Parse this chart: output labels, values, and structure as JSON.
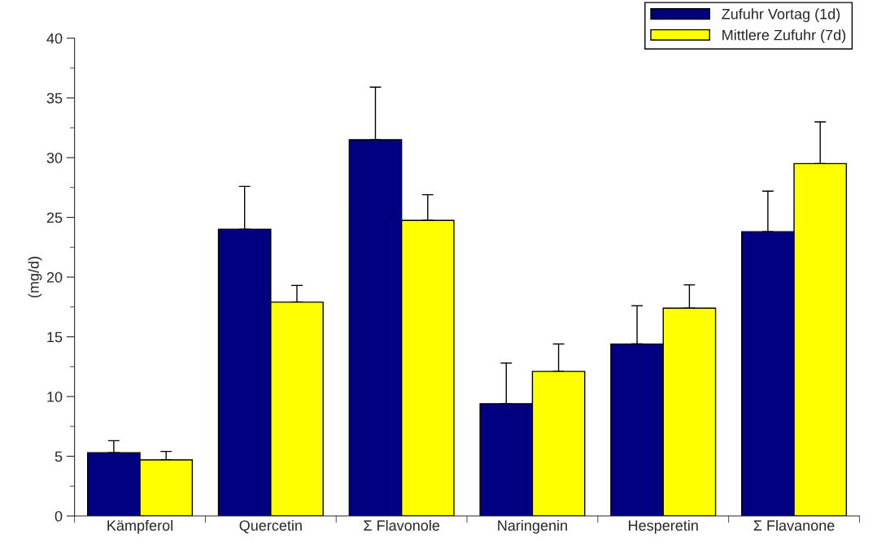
{
  "chart_data": {
    "type": "bar",
    "ylabel": "(mg/d)",
    "categories": [
      "Kämpferol",
      "Quercetin",
      "Σ Flavonole",
      "Naringenin",
      "Hesperetin",
      "Σ Flavanone"
    ],
    "series": [
      {
        "name": "Zufuhr Vortag (1d)",
        "color": "#000080",
        "values": [
          5.3,
          24.0,
          31.5,
          9.4,
          14.4,
          23.8
        ],
        "errors": [
          [
            5.3,
            6.3
          ],
          [
            24.0,
            27.6
          ],
          [
            31.5,
            35.9
          ],
          [
            9.4,
            12.8
          ],
          [
            14.4,
            17.6
          ],
          [
            23.8,
            27.2
          ]
        ]
      },
      {
        "name": "Mittlere Zufuhr (7d)",
        "color": "#ffff00",
        "values": [
          4.7,
          17.9,
          24.75,
          12.1,
          17.4,
          29.5
        ],
        "errors": [
          [
            4.7,
            5.4
          ],
          [
            17.9,
            19.3
          ],
          [
            24.75,
            26.9
          ],
          [
            12.1,
            14.4
          ],
          [
            17.4,
            19.35
          ],
          [
            29.5,
            33.0
          ]
        ]
      }
    ],
    "ylim": [
      0,
      40
    ],
    "yticks": [
      0,
      5,
      10,
      15,
      20,
      25,
      30,
      35,
      40
    ],
    "grid": false,
    "legend": "top right"
  }
}
